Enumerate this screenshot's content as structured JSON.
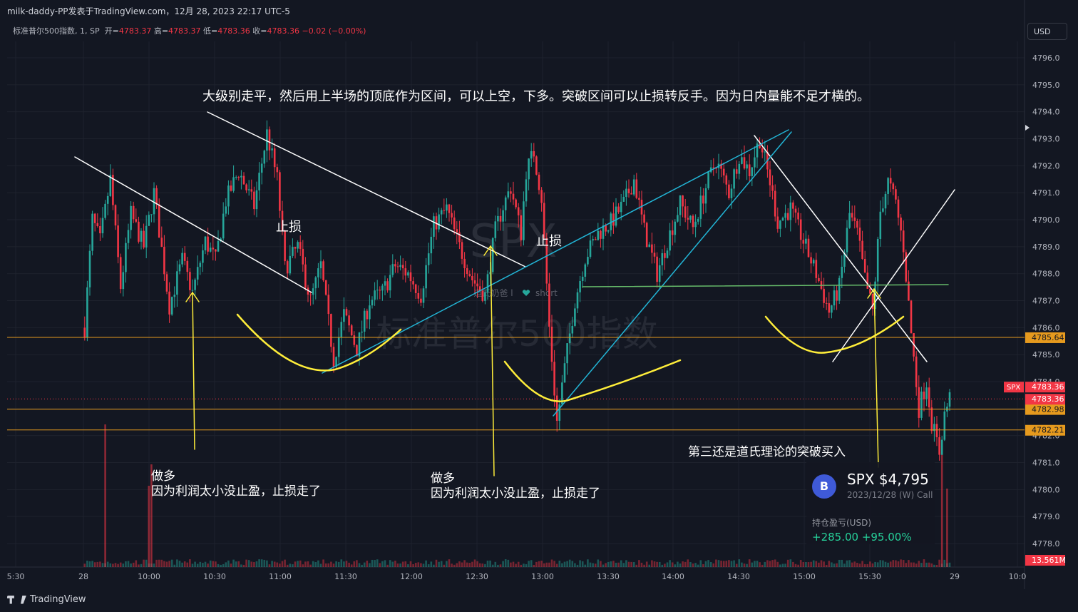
{
  "header": {
    "title": "milk-daddy-PP发表于TradingView.com，12月 28, 2023 22:17 UTC-5"
  },
  "ohlc": {
    "symbol": "标准普尔500指数, 1, SP",
    "open_label": "开=",
    "open": "4783.37",
    "high_label": "高=",
    "high": "4783.37",
    "low_label": "低=",
    "low": "4783.36",
    "close_label": "收=",
    "close": "4783.36",
    "change": "−0.02 (−0.00%)"
  },
  "currency": "USD",
  "annotations": {
    "top": "大级别走平，然后用上半场的顶底作为区间，可以上空，下多。突破区间可以止损转反手。因为日内量能不足才横的。",
    "stop1": "止损",
    "stop2": "止损",
    "long1_a": "做多",
    "long1_b": "因为利润太小没止盈，止损走了",
    "long2_a": "做多",
    "long2_b": "因为利润太小没止盈，止损走了",
    "third": "第三还是道氏理论的突破买入"
  },
  "watermark": {
    "symbol": "SPX",
    "name": "标准普尔500指数",
    "author": "道氏奶爸",
    "side": "short"
  },
  "card": {
    "avatar": "B",
    "title": "SPX $4,795",
    "subtitle": "2023/12/28 (W) Call",
    "pnl_label": "持仓盈亏(USD)",
    "pnl": "+285.00 +95.00%"
  },
  "footer": {
    "brand": "TradingView"
  },
  "colors": {
    "up": "#26a69a",
    "down": "#f23645",
    "level": "#e69a1e",
    "cyan": "#22b5d6",
    "yellow": "#ffee3a",
    "green": "#66bb6a"
  },
  "chart_data": {
    "type": "candlestick",
    "symbol": "SPX",
    "interval": "1",
    "ylim": [
      4777,
      4797
    ],
    "y_ticks": [
      4778,
      4779,
      4780,
      4781,
      4782,
      4783,
      4784,
      4785,
      4786,
      4787,
      4788,
      4789,
      4790,
      4791,
      4792,
      4793,
      4794,
      4795,
      4796
    ],
    "x_ticks": [
      "5:30",
      "28",
      "10:00",
      "10:30",
      "11:00",
      "11:30",
      "12:00",
      "12:30",
      "13:00",
      "13:30",
      "14:00",
      "14:30",
      "15:00",
      "15:30",
      "29",
      "10:0"
    ],
    "price_levels": [
      {
        "value": 4785.64,
        "label": "4785.64"
      },
      {
        "value": 4782.98,
        "label": "4782.98"
      },
      {
        "value": 4782.21,
        "label": "4782.21"
      }
    ],
    "last_price": {
      "symbol": "SPX",
      "value": 4783.36,
      "label": "4783.36"
    },
    "volume_label": "13.561M",
    "price_path": [
      [
        0,
        4786.0
      ],
      [
        3,
        4790.0
      ],
      [
        6,
        4789.2
      ],
      [
        10,
        4791.5
      ],
      [
        14,
        4787.5
      ],
      [
        18,
        4790.2
      ],
      [
        23,
        4789.0
      ],
      [
        27,
        4791.0
      ],
      [
        33,
        4786.8
      ],
      [
        38,
        4788.5
      ],
      [
        42,
        4787.3
      ],
      [
        47,
        4789.2
      ],
      [
        51,
        4788.5
      ],
      [
        55,
        4790.7
      ],
      [
        60,
        4791.8
      ],
      [
        66,
        4790.5
      ],
      [
        71,
        4793.2
      ],
      [
        75,
        4791.5
      ],
      [
        78,
        4788.2
      ],
      [
        83,
        4789.0
      ],
      [
        88,
        4787.0
      ],
      [
        92,
        4788.3
      ],
      [
        97,
        4784.8
      ],
      [
        101,
        4786.5
      ],
      [
        106,
        4785.2
      ],
      [
        111,
        4787.0
      ],
      [
        116,
        4787.3
      ],
      [
        121,
        4788.3
      ],
      [
        126,
        4788.0
      ],
      [
        131,
        4787.2
      ],
      [
        136,
        4789.8
      ],
      [
        141,
        4790.4
      ],
      [
        146,
        4789.0
      ],
      [
        151,
        4787.8
      ],
      [
        156,
        4787.2
      ],
      [
        160,
        4789.6
      ],
      [
        163,
        4790.5
      ],
      [
        166,
        4791.2
      ],
      [
        170,
        4789.5
      ],
      [
        172,
        4791.8
      ],
      [
        175,
        4792.5
      ],
      [
        178,
        4790.8
      ],
      [
        181,
        4786.0
      ],
      [
        184,
        4782.5
      ],
      [
        187,
        4784.5
      ],
      [
        191,
        4787.0
      ],
      [
        195,
        4788.6
      ],
      [
        200,
        4789.5
      ],
      [
        205,
        4789.9
      ],
      [
        210,
        4790.6
      ],
      [
        214,
        4791.5
      ],
      [
        218,
        4789.6
      ],
      [
        223,
        4788.0
      ],
      [
        227,
        4789.2
      ],
      [
        232,
        4790.6
      ],
      [
        237,
        4789.7
      ],
      [
        242,
        4791.2
      ],
      [
        246,
        4792.2
      ],
      [
        251,
        4791.0
      ],
      [
        255,
        4792.4
      ],
      [
        259,
        4791.8
      ],
      [
        263,
        4793.0
      ],
      [
        267,
        4791.4
      ],
      [
        270,
        4789.9
      ],
      [
        275,
        4790.4
      ],
      [
        280,
        4789.2
      ],
      [
        285,
        4788.0
      ],
      [
        290,
        4786.6
      ],
      [
        294,
        4787.5
      ],
      [
        298,
        4790.2
      ],
      [
        301,
        4789.5
      ],
      [
        304,
        4787.8
      ],
      [
        307,
        4786.6
      ],
      [
        310,
        4790.3
      ],
      [
        313,
        4791.4
      ],
      [
        316,
        4790.6
      ],
      [
        319,
        4789.0
      ],
      [
        322,
        4785.8
      ],
      [
        325,
        4783.0
      ],
      [
        328,
        4784.0
      ],
      [
        330,
        4782.5
      ],
      [
        333,
        4781.4
      ],
      [
        335,
        4782.8
      ],
      [
        337,
        4783.4
      ]
    ],
    "volume_spikes": [
      {
        "i": 8,
        "value": 1.0
      },
      {
        "i": 25,
        "value": 0.57
      },
      {
        "i": 26,
        "value": 0.72
      },
      {
        "i": 334,
        "value": 0.85
      },
      {
        "i": 336,
        "value": 0.55
      }
    ]
  }
}
